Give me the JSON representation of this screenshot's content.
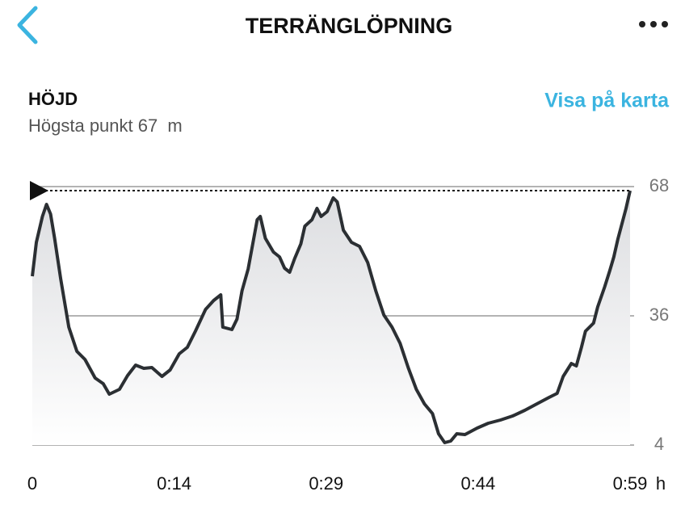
{
  "header": {
    "title": "TERRÄNGLÖPNING"
  },
  "section": {
    "title": "HÖJD",
    "link": "Visa på karta"
  },
  "chart_data": {
    "type": "line",
    "max_label": "Högsta punkt",
    "max_value": 67,
    "unit": "m",
    "x_unit": "h",
    "x": [
      0.0,
      0.4,
      1.0,
      1.4,
      1.8,
      2.2,
      2.8,
      3.6,
      4.4,
      5.2,
      6.2,
      7.0,
      7.6,
      8.6,
      9.4,
      10.2,
      11.0,
      11.8,
      12.8,
      13.6,
      14.5,
      15.3,
      16.1,
      17.1,
      17.9,
      18.6,
      18.8,
      19.7,
      20.2,
      20.7,
      21.3,
      22.2,
      22.5,
      23.0,
      23.8,
      24.4,
      24.9,
      25.4,
      25.9,
      26.5,
      26.9,
      27.6,
      28.1,
      28.5,
      29.1,
      29.7,
      30.1,
      30.7,
      31.5,
      32.3,
      33.1,
      33.9,
      34.7,
      35.5,
      36.3,
      37.1,
      37.9,
      38.7,
      39.5,
      40.1,
      40.7,
      41.3,
      41.9,
      42.7,
      43.9,
      45.0,
      46.2,
      47.4,
      48.6,
      49.8,
      51.0,
      51.8,
      52.4,
      53.2,
      53.7,
      54.2,
      54.6,
      55.4,
      55.8,
      56.5,
      57.0,
      57.4,
      57.8,
      58.6,
      59.0
    ],
    "series": [
      {
        "name": "Höjd",
        "color": "#2b2f33",
        "values": [
          45.8,
          54.2,
          60.6,
          63.6,
          61.2,
          55.2,
          45.2,
          33.2,
          27.2,
          25.2,
          20.6,
          19.2,
          16.6,
          17.8,
          21.2,
          23.8,
          23.0,
          23.2,
          21.0,
          22.6,
          26.6,
          28.2,
          32.2,
          37.6,
          39.8,
          41.2,
          33.2,
          32.6,
          35.2,
          42.2,
          47.6,
          59.8,
          60.6,
          55.2,
          51.8,
          50.6,
          47.8,
          46.8,
          50.2,
          53.8,
          58.2,
          59.8,
          62.6,
          60.6,
          61.8,
          65.2,
          64.2,
          57.2,
          54.2,
          53.2,
          49.2,
          42.2,
          36.2,
          33.2,
          29.2,
          23.2,
          17.8,
          14.2,
          11.8,
          6.8,
          4.6,
          5.0,
          6.8,
          6.6,
          8.2,
          9.4,
          10.2,
          11.2,
          12.6,
          14.2,
          15.8,
          16.8,
          21.0,
          24.2,
          23.6,
          28.2,
          32.2,
          34.2,
          38.2,
          43.2,
          47.2,
          50.6,
          55.0,
          62.6,
          67.0
        ]
      }
    ],
    "xlim": [
      0,
      59
    ],
    "ylim": [
      4,
      68
    ],
    "xticks": [
      0,
      {
        "value": 14,
        "label": "0:14"
      },
      {
        "value": 29,
        "label": "0:29"
      },
      {
        "value": 44,
        "label": "0:44"
      },
      {
        "value": 59,
        "label": "0:59"
      }
    ],
    "yticks": [
      4,
      36,
      68
    ],
    "grid": true
  }
}
